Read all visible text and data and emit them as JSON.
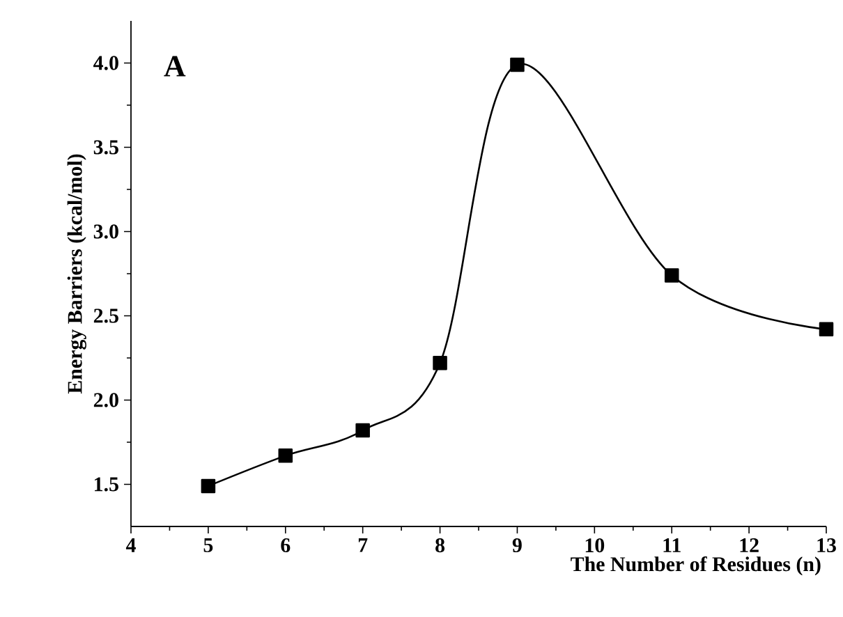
{
  "chart_data": {
    "type": "line",
    "xlabel": "The Number of Residues (n)",
    "ylabel": "Energy Barriers (kcal/mol)",
    "annotations": [
      "A"
    ],
    "x": [
      5,
      6,
      7,
      8,
      9,
      11,
      13
    ],
    "series": [
      {
        "color": "#000000",
        "values": [
          1.49,
          1.67,
          1.82,
          2.22,
          3.99,
          2.74,
          2.42
        ]
      }
    ],
    "marker": "square",
    "line_style": "solid",
    "xlim": [
      4,
      13
    ],
    "ylim": [
      1.25,
      4.25
    ],
    "xticks": [
      4,
      5,
      6,
      7,
      8,
      9,
      10,
      11,
      12,
      13
    ],
    "yticks": [
      {
        "value": 1.5,
        "label": "1.5"
      },
      {
        "value": 2.0,
        "label": "2.0"
      },
      {
        "value": 2.5,
        "label": "2.5"
      },
      {
        "value": 3.0,
        "label": "3.0"
      },
      {
        "value": 3.5,
        "label": "3.5"
      },
      {
        "value": 4.0,
        "label": "4.0"
      }
    ]
  }
}
